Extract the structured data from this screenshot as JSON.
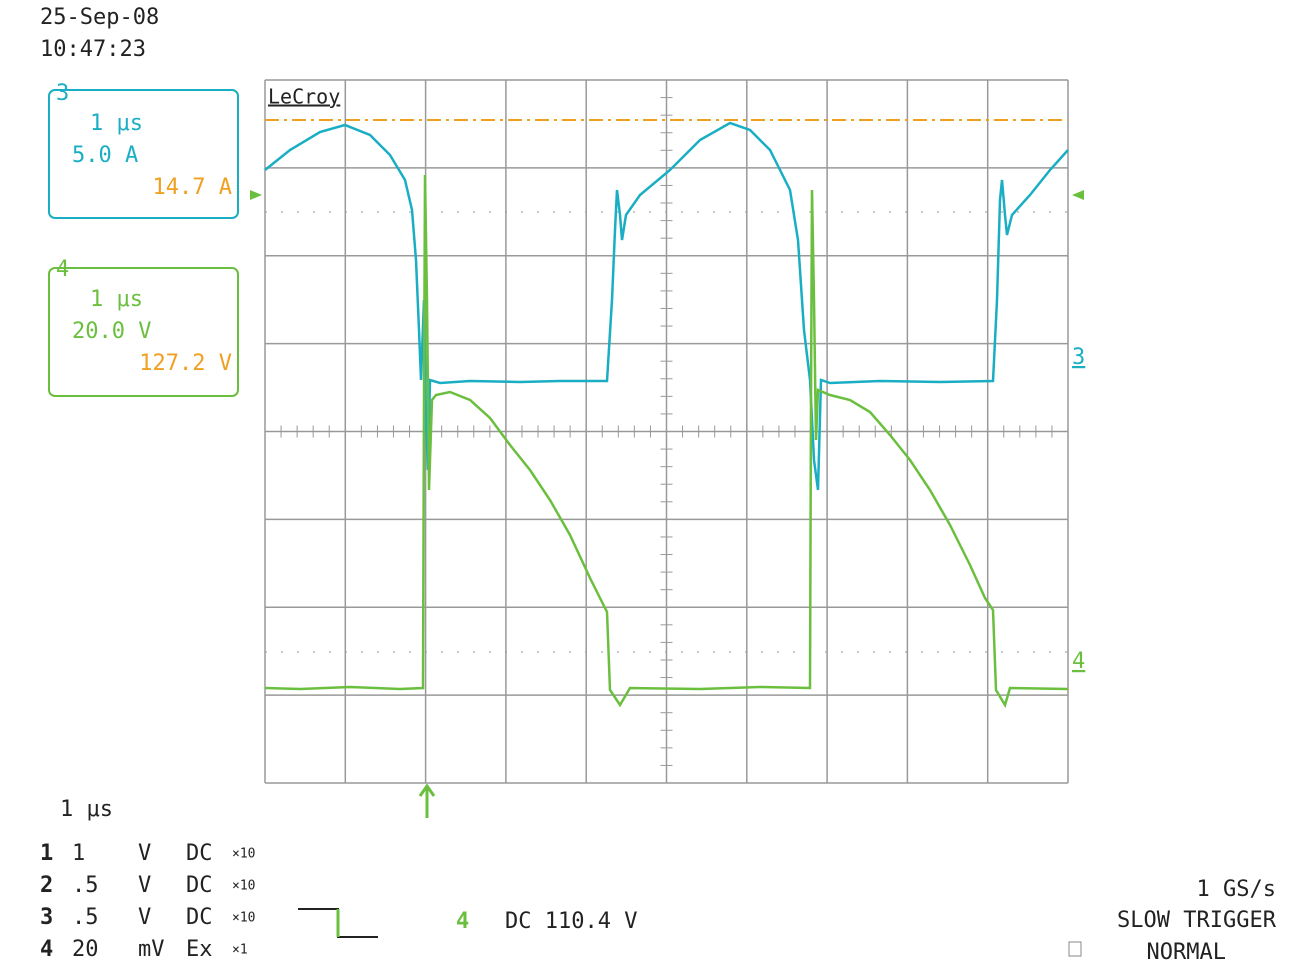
{
  "header": {
    "date": "25-Sep-08",
    "time": "10:47:23"
  },
  "brand": "LeCroy",
  "channel_boxes": [
    {
      "id": "3",
      "timebase": "1 μs",
      "scale": "5.0 A",
      "level": "14.7 A"
    },
    {
      "id": "4",
      "timebase": "1 μs",
      "scale": "20.0 V",
      "level": "127.2 V"
    }
  ],
  "trace_markers": [
    "3",
    "4"
  ],
  "timebase": "1 μs",
  "channels": [
    [
      "1",
      "1",
      "V",
      "DC",
      "×10"
    ],
    [
      "2",
      ".5",
      "V",
      "DC",
      "×10"
    ],
    [
      "3",
      ".5",
      "V",
      "DC",
      "×10"
    ],
    [
      "4",
      "20",
      "mV",
      "Ex",
      "×1"
    ]
  ],
  "trigger": {
    "channel": "4",
    "coupling": "DC 110.4 V"
  },
  "acquisition": {
    "rate": "1 GS/s",
    "mode": "SLOW TRIGGER",
    "state": "NORMAL"
  }
}
